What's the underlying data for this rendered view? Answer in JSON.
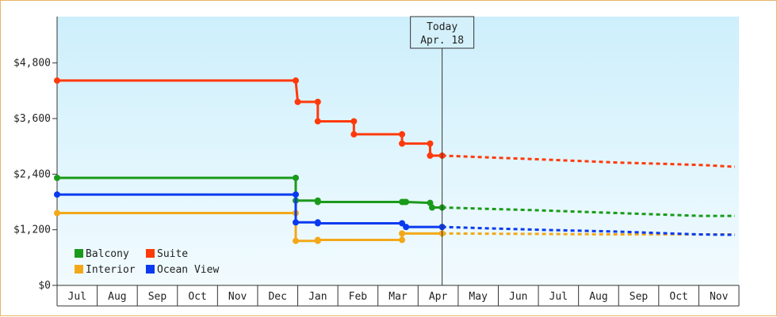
{
  "chart_data": {
    "type": "line",
    "x_unit": "month",
    "xtick_labels": [
      "Jul",
      "Aug",
      "Sep",
      "Oct",
      "Nov",
      "Dec",
      "Jan",
      "Feb",
      "Mar",
      "Apr",
      "May",
      "Jun",
      "Jul",
      "Aug",
      "Sep",
      "Oct",
      "Nov"
    ],
    "ylim": [
      0,
      5800
    ],
    "yticks": [
      0,
      1200,
      2400,
      3600,
      4800
    ],
    "ytick_labels": [
      "$0",
      "$1,200",
      "$2,400",
      "$3,600",
      "$4,800"
    ],
    "grid": false,
    "legend_position": "bottom-left",
    "today": {
      "line1": "Today",
      "line2": "Apr. 18",
      "x": 9.6
    },
    "series": [
      {
        "name": "Balcony",
        "color": "#1a9a1a",
        "actual": [
          [
            0,
            2320
          ],
          [
            5.95,
            2320
          ],
          [
            5.95,
            1830
          ],
          [
            6.5,
            1830
          ],
          [
            6.5,
            1800
          ],
          [
            8.6,
            1800
          ],
          [
            8.65,
            1800
          ],
          [
            8.7,
            1800
          ],
          [
            9.3,
            1780
          ],
          [
            9.35,
            1680
          ],
          [
            9.6,
            1680
          ]
        ],
        "forecast": [
          [
            9.6,
            1680
          ],
          [
            12,
            1620
          ],
          [
            14,
            1560
          ],
          [
            16,
            1500
          ],
          [
            16.9,
            1500
          ]
        ]
      },
      {
        "name": "Suite",
        "color": "#ff3a0a",
        "actual": [
          [
            0,
            4420
          ],
          [
            5.95,
            4420
          ],
          [
            6.0,
            3960
          ],
          [
            6.5,
            3960
          ],
          [
            6.5,
            3540
          ],
          [
            7.4,
            3540
          ],
          [
            7.4,
            3260
          ],
          [
            8.6,
            3260
          ],
          [
            8.6,
            3060
          ],
          [
            9.3,
            3060
          ],
          [
            9.3,
            2800
          ],
          [
            9.6,
            2800
          ]
        ],
        "forecast": [
          [
            9.6,
            2800
          ],
          [
            12,
            2720
          ],
          [
            14,
            2650
          ],
          [
            16,
            2600
          ],
          [
            16.9,
            2560
          ]
        ]
      },
      {
        "name": "Interior",
        "color": "#f3a818",
        "actual": [
          [
            0,
            1560
          ],
          [
            5.95,
            1560
          ],
          [
            5.95,
            960
          ],
          [
            6.5,
            960
          ],
          [
            6.5,
            980
          ],
          [
            8.6,
            980
          ],
          [
            8.6,
            1120
          ],
          [
            9.6,
            1120
          ]
        ],
        "forecast": [
          [
            9.6,
            1120
          ],
          [
            12,
            1110
          ],
          [
            14,
            1100
          ],
          [
            16,
            1100
          ],
          [
            16.9,
            1100
          ]
        ]
      },
      {
        "name": "Ocean View",
        "color": "#0a3aef",
        "actual": [
          [
            0,
            1960
          ],
          [
            5.95,
            1960
          ],
          [
            5.95,
            1360
          ],
          [
            6.5,
            1360
          ],
          [
            6.5,
            1340
          ],
          [
            8.6,
            1340
          ],
          [
            8.7,
            1260
          ],
          [
            9.6,
            1260
          ]
        ],
        "forecast": [
          [
            9.6,
            1260
          ],
          [
            12,
            1200
          ],
          [
            14,
            1160
          ],
          [
            16,
            1100
          ],
          [
            16.9,
            1090
          ]
        ]
      }
    ]
  }
}
